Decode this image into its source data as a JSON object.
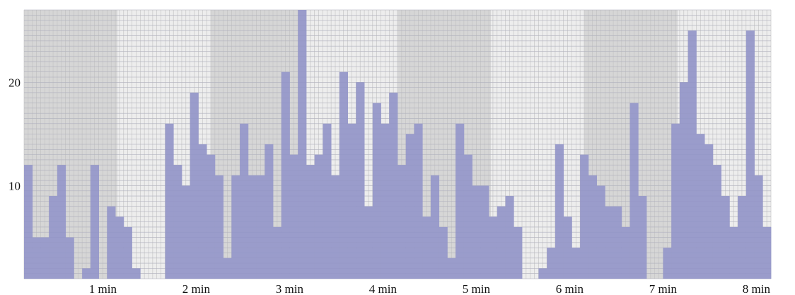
{
  "chart_data": {
    "type": "bar",
    "title": "",
    "xlabel": "",
    "ylabel": "",
    "xlim": [
      0,
      8
    ],
    "ylim": [
      1,
      27
    ],
    "grid": true,
    "y_ticks": [
      {
        "value": 10,
        "label": "10"
      },
      {
        "value": 20,
        "label": "20"
      }
    ],
    "x_ticks": [
      {
        "value": 1,
        "label": "1 min"
      },
      {
        "value": 2,
        "label": "2 min"
      },
      {
        "value": 3,
        "label": "3 min"
      },
      {
        "value": 4,
        "label": "4 min"
      },
      {
        "value": 5,
        "label": "5 min"
      },
      {
        "value": 6,
        "label": "6 min"
      },
      {
        "value": 7,
        "label": "7 min"
      },
      {
        "value": 8,
        "label": "8 min"
      }
    ],
    "series": [
      {
        "values": [
          12,
          5,
          5,
          9,
          12,
          5,
          1,
          2,
          12,
          1,
          8,
          7,
          6,
          2,
          1,
          1,
          1,
          16,
          12,
          10,
          19,
          14,
          13,
          11,
          3,
          11,
          16,
          11,
          11,
          14,
          6,
          21,
          13,
          27,
          12,
          13,
          16,
          11,
          21,
          16,
          20,
          8,
          18,
          16,
          19,
          12,
          15,
          16,
          7,
          11,
          6,
          3,
          16,
          13,
          10,
          10,
          7,
          8,
          9,
          6,
          1,
          1,
          2,
          4,
          14,
          7,
          4,
          13,
          11,
          10,
          8,
          8,
          6,
          18,
          9,
          1,
          1,
          4,
          16,
          20,
          25,
          15,
          14,
          12,
          9,
          6,
          9,
          25,
          11,
          6
        ],
        "color": "#9a9ccb"
      }
    ],
    "colors": {
      "band_dark": "#d6d6d6",
      "band_light": "#ededed",
      "grid_line": "#c0c0c0",
      "bar": "#9a9ccb",
      "tick_text": "#111111"
    }
  }
}
